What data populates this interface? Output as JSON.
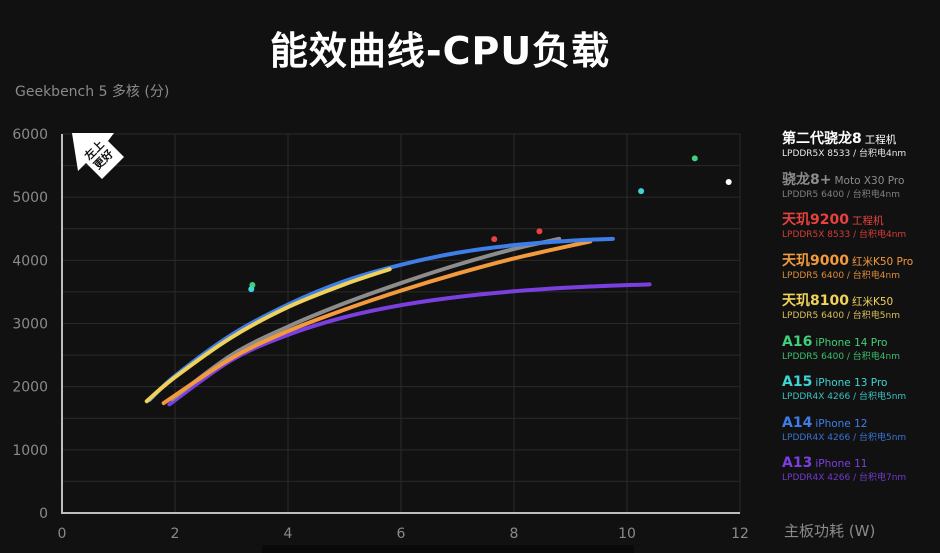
{
  "title": "能效曲线-CPU负载",
  "y_axis_label": "Geekbench 5 多核 (分)",
  "x_axis_label": "主板功耗 (W)",
  "badge": {
    "line1": "左上",
    "line2": "更好"
  },
  "colors": {
    "background": "#111111",
    "grid": "#2a2a2a",
    "axis": "#bdbdbd",
    "tick_text": "#8a8a8a"
  },
  "legend": [
    {
      "chip": "第二代骁龙8",
      "device": "工程机",
      "memory": "LPDDR5X 8533 / 台积电4nm",
      "color": "#ffffff"
    },
    {
      "chip": "骁龙8+",
      "device": "Moto X30 Pro",
      "memory": "LPDDR5 6400 / 台积电4nm",
      "color": "#8c8c8c"
    },
    {
      "chip": "天玑9200",
      "device": "工程机",
      "memory": "LPDDR5X 8533 / 台积电4nm",
      "color": "#e8413e"
    },
    {
      "chip": "天玑9000",
      "device": "红米K50 Pro",
      "memory": "LPDDR5 6400 / 台积电4nm",
      "color": "#f39a3c"
    },
    {
      "chip": "天玑8100",
      "device": "红米K50",
      "memory": "LPDDR5 6400 / 台积电5nm",
      "color": "#f0d25a"
    },
    {
      "chip": "A16",
      "device": "iPhone 14 Pro",
      "memory": "LPDDR5 6400 / 台积电4nm",
      "color": "#3fd07a"
    },
    {
      "chip": "A15",
      "device": "iPhone 13 Pro",
      "memory": "LPDDR4X 4266 / 台积电5nm",
      "color": "#3fd4d4"
    },
    {
      "chip": "A14",
      "device": "iPhone 12",
      "memory": "LPDDR4X 4266 / 台积电5nm",
      "color": "#3d7ee8"
    },
    {
      "chip": "A13",
      "device": "iPhone 11",
      "memory": "LPDDR4X 4266 / 台积电7nm",
      "color": "#7b3fe0"
    }
  ],
  "chart_data": {
    "type": "line",
    "title": "能效曲线-CPU负载",
    "xlabel": "主板功耗 (W)",
    "ylabel": "Geekbench 5 多核 (分)",
    "xlim": [
      0,
      12
    ],
    "ylim": [
      0,
      6000
    ],
    "x_ticks": [
      0,
      2,
      4,
      6,
      8,
      10,
      12
    ],
    "y_ticks": [
      0,
      1000,
      2000,
      3000,
      4000,
      5000,
      6000
    ],
    "grid": true,
    "legend_position": "right",
    "series": [
      {
        "name": "骁龙8+ (Moto X30 Pro)",
        "color": "#8c8c8c",
        "kind": "curve",
        "points": [
          [
            1.95,
            1800
          ],
          [
            3,
            2500
          ],
          [
            4,
            2950
          ],
          [
            5,
            3320
          ],
          [
            6,
            3640
          ],
          [
            7,
            3930
          ],
          [
            8,
            4180
          ],
          [
            8.8,
            4340
          ]
        ]
      },
      {
        "name": "天玑9000 (红米K50 Pro)",
        "color": "#f39a3c",
        "kind": "curve",
        "points": [
          [
            1.8,
            1740
          ],
          [
            3,
            2450
          ],
          [
            4,
            2880
          ],
          [
            5,
            3220
          ],
          [
            6,
            3520
          ],
          [
            7,
            3790
          ],
          [
            8,
            4030
          ],
          [
            9.35,
            4300
          ]
        ]
      },
      {
        "name": "天玑8100 (红米K50)",
        "color": "#f0d25a",
        "kind": "curve",
        "points": [
          [
            1.5,
            1770
          ],
          [
            2,
            2150
          ],
          [
            3,
            2780
          ],
          [
            4,
            3260
          ],
          [
            5,
            3620
          ],
          [
            5.8,
            3860
          ]
        ]
      },
      {
        "name": "A14 (iPhone 12)",
        "color": "#3d7ee8",
        "kind": "curve",
        "points": [
          [
            1.55,
            1790
          ],
          [
            2,
            2170
          ],
          [
            3,
            2820
          ],
          [
            4,
            3300
          ],
          [
            5,
            3670
          ],
          [
            6,
            3930
          ],
          [
            7,
            4120
          ],
          [
            8,
            4240
          ],
          [
            9,
            4310
          ],
          [
            9.75,
            4340
          ]
        ]
      },
      {
        "name": "A13 (iPhone 11)",
        "color": "#7b3fe0",
        "kind": "curve",
        "points": [
          [
            1.9,
            1720
          ],
          [
            3,
            2420
          ],
          [
            4,
            2820
          ],
          [
            5,
            3100
          ],
          [
            6,
            3290
          ],
          [
            7,
            3420
          ],
          [
            8,
            3510
          ],
          [
            9,
            3570
          ],
          [
            10.4,
            3620
          ]
        ]
      },
      {
        "name": "第二代骁龙8 (工程机)",
        "color": "#ffffff",
        "kind": "point",
        "points": [
          [
            11.8,
            5240
          ]
        ]
      },
      {
        "name": "天玑9200 (工程机)",
        "color": "#e8413e",
        "kind": "point",
        "points": [
          [
            7.65,
            4335
          ],
          [
            8.45,
            4460
          ]
        ]
      },
      {
        "name": "A16 (iPhone 14 Pro)",
        "color": "#3fd07a",
        "kind": "point",
        "points": [
          [
            3.37,
            3610
          ],
          [
            11.2,
            5615
          ]
        ]
      },
      {
        "name": "A15 (iPhone 13 Pro)",
        "color": "#3fd4d4",
        "kind": "point",
        "points": [
          [
            3.35,
            3545
          ],
          [
            10.25,
            5095
          ]
        ]
      }
    ]
  }
}
